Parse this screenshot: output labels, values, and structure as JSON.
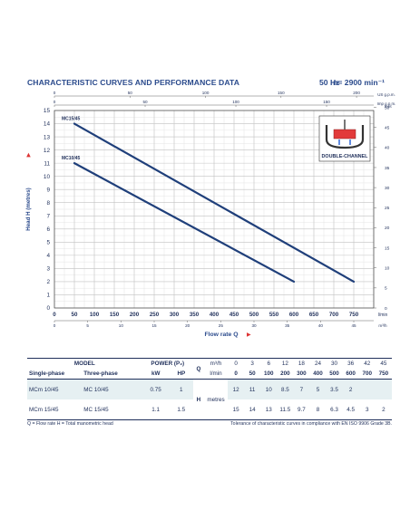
{
  "header": {
    "title": "CHARACTERISTIC CURVES AND PERFORMANCE DATA",
    "freq": "50 Hz",
    "speed": "n= 2900 min⁻¹"
  },
  "chart_data": {
    "type": "line",
    "xlabel": "Flow rate Q",
    "ylabel": "Head H (metres)",
    "x_unit": "l/min",
    "xlim": [
      0,
      800
    ],
    "ylim": [
      0,
      15
    ],
    "x_ticks": [
      0,
      50,
      100,
      150,
      200,
      250,
      300,
      350,
      400,
      450,
      500,
      550,
      600,
      650,
      700,
      750
    ],
    "x_tick_labels": [
      "0",
      "50",
      "100",
      "150",
      "200",
      "250",
      "300",
      "350",
      "400",
      "450",
      "500",
      "550",
      "600",
      "650",
      "700",
      "750"
    ],
    "y_ticks": [
      0,
      1,
      2,
      3,
      4,
      5,
      6,
      7,
      8,
      9,
      10,
      11,
      12,
      13,
      14,
      15
    ],
    "y_tick_labels": [
      "0",
      "1",
      "2",
      "3",
      "4",
      "5",
      "6",
      "7",
      "8",
      "9",
      "10",
      "11",
      "12",
      "13",
      "14",
      "15"
    ],
    "series": [
      {
        "name": "MC15/45",
        "x": [
          50,
          750
        ],
        "y": [
          14,
          2
        ]
      },
      {
        "name": "MC10/45",
        "x": [
          50,
          600
        ],
        "y": [
          11,
          2
        ]
      }
    ],
    "top_axis": {
      "us_gpm": {
        "label": "US g.p.m.",
        "ticks": [
          0,
          50,
          100,
          150,
          200
        ],
        "tick_labels": [
          "0",
          "50",
          "100",
          "150",
          "200"
        ]
      },
      "imp_gpm": {
        "label": "Imp g.p.m.",
        "ticks": [
          0,
          50,
          100,
          150
        ],
        "tick_labels": [
          "0",
          "50",
          "100",
          "150"
        ]
      }
    },
    "bottom_axis": {
      "m3h": {
        "label": "m³/h",
        "ticks": [
          0,
          5,
          10,
          15,
          20,
          25,
          30,
          35,
          40,
          45
        ],
        "tick_labels": [
          "0",
          "5",
          "10",
          "15",
          "20",
          "25",
          "30",
          "35",
          "40",
          "45"
        ]
      }
    },
    "right_axis": {
      "label": "feet",
      "ticks": [
        0,
        5,
        10,
        15,
        20,
        25,
        30,
        35,
        40,
        45,
        50
      ],
      "tick_labels": [
        "0",
        "5",
        "10",
        "15",
        "20",
        "25",
        "30",
        "35",
        "40",
        "45",
        "50"
      ]
    },
    "grid": true,
    "inset_label": "DOUBLE-CHANNEL",
    "colors": {
      "curve": "#1f3f7a",
      "grid": "#c2c2c2",
      "accent": "#2a4a8c",
      "inset_red": "#e23a3a",
      "inset_blue": "#3a6fd8"
    }
  },
  "table": {
    "model_label": "MODEL",
    "single_phase_label": "Single-phase",
    "three_phase_label": "Three-phase",
    "power_label": "POWER (P₂)",
    "kw_label": "kW",
    "hp_label": "HP",
    "q_label": "Q",
    "m3h_label": "m³/h",
    "lmin_label": "l/min",
    "h_label": "H",
    "metres_label": "metres",
    "q_m3h": [
      "0",
      "3",
      "6",
      "12",
      "18",
      "24",
      "30",
      "36",
      "42",
      "45"
    ],
    "q_lmin": [
      "0",
      "50",
      "100",
      "200",
      "300",
      "400",
      "500",
      "600",
      "700",
      "750"
    ],
    "rows": [
      {
        "single": "MCm 10/45",
        "three": "MC 10/45",
        "kw": "0.75",
        "hp": "1",
        "h": [
          "12",
          "11",
          "10",
          "8.5",
          "7",
          "5",
          "3.5",
          "2",
          "",
          ""
        ]
      },
      {
        "single": "MCm 15/45",
        "three": "MC 15/45",
        "kw": "1.1",
        "hp": "1.5",
        "h": [
          "15",
          "14",
          "13",
          "11.5",
          "9.7",
          "8",
          "6.3",
          "4.5",
          "3",
          "2"
        ]
      }
    ]
  },
  "footer": {
    "left": "Q = Flow rate  H = Total manometric head",
    "right": "Tolerance of characteristic curves in compliance with EN ISO 9906 Grade 3B."
  }
}
